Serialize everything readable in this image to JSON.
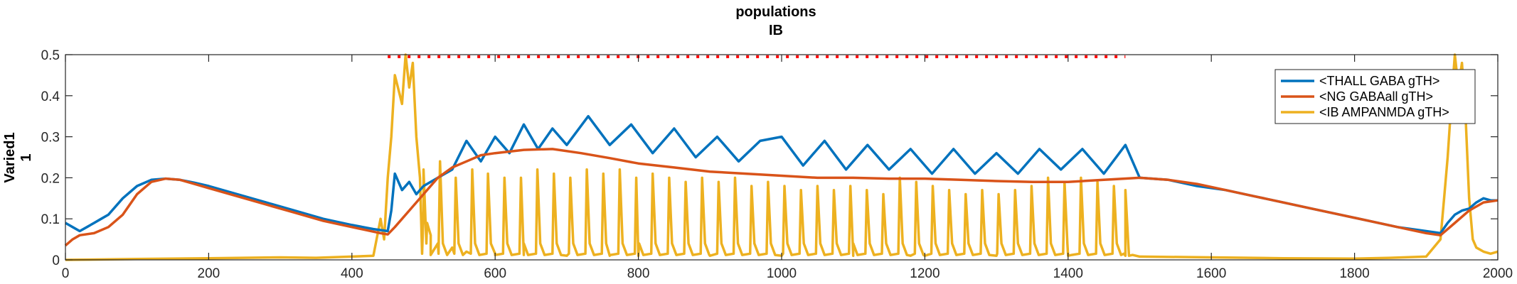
{
  "chart_data": {
    "type": "line",
    "title": [
      "populations",
      "IB"
    ],
    "ylabel": [
      "Varied1",
      "1"
    ],
    "xlim": [
      0,
      2000
    ],
    "ylim": [
      0,
      0.5
    ],
    "xticks": [
      0,
      200,
      400,
      600,
      800,
      1000,
      1200,
      1400,
      1600,
      1800,
      2000
    ],
    "yticks": [
      0,
      0.1,
      0.2,
      0.3,
      0.4,
      0.5
    ],
    "grid": false,
    "legend_position": "top-right",
    "stimulus_marker": {
      "y": 0.495,
      "x_start": 450,
      "x_end": 1480,
      "color": "#FF0000"
    },
    "series": [
      {
        "name": "<THALL GABA gTH>",
        "color": "#0072BD",
        "x": [
          0,
          5,
          10,
          20,
          30,
          40,
          50,
          60,
          80,
          100,
          120,
          140,
          160,
          180,
          200,
          240,
          280,
          320,
          360,
          400,
          430,
          450,
          455,
          460,
          470,
          480,
          490,
          500,
          520,
          540,
          560,
          580,
          600,
          620,
          640,
          660,
          680,
          700,
          730,
          760,
          790,
          820,
          850,
          880,
          910,
          940,
          970,
          1000,
          1030,
          1060,
          1090,
          1120,
          1150,
          1180,
          1210,
          1240,
          1270,
          1300,
          1330,
          1360,
          1390,
          1420,
          1450,
          1480,
          1500,
          1540,
          1580,
          1620,
          1660,
          1700,
          1740,
          1780,
          1820,
          1860,
          1900,
          1920,
          1930,
          1940,
          1950,
          1960,
          1970,
          1980,
          1990,
          2000
        ],
        "values": [
          0.09,
          0.085,
          0.08,
          0.07,
          0.08,
          0.09,
          0.1,
          0.11,
          0.15,
          0.18,
          0.195,
          0.198,
          0.195,
          0.188,
          0.18,
          0.16,
          0.14,
          0.12,
          0.1,
          0.085,
          0.075,
          0.07,
          0.12,
          0.21,
          0.17,
          0.19,
          0.16,
          0.18,
          0.2,
          0.22,
          0.29,
          0.24,
          0.3,
          0.26,
          0.33,
          0.27,
          0.32,
          0.28,
          0.35,
          0.28,
          0.33,
          0.26,
          0.32,
          0.25,
          0.3,
          0.24,
          0.29,
          0.3,
          0.23,
          0.29,
          0.22,
          0.28,
          0.22,
          0.27,
          0.21,
          0.27,
          0.21,
          0.26,
          0.21,
          0.27,
          0.22,
          0.27,
          0.21,
          0.28,
          0.2,
          0.195,
          0.18,
          0.17,
          0.155,
          0.14,
          0.125,
          0.11,
          0.095,
          0.08,
          0.07,
          0.065,
          0.09,
          0.11,
          0.12,
          0.125,
          0.14,
          0.15,
          0.145,
          0.145
        ]
      },
      {
        "name": "<NG GABAall gTH>",
        "color": "#D95319",
        "x": [
          0,
          10,
          20,
          40,
          60,
          80,
          100,
          120,
          140,
          160,
          180,
          200,
          240,
          280,
          320,
          360,
          400,
          440,
          450,
          460,
          480,
          500,
          520,
          540,
          560,
          580,
          600,
          640,
          680,
          720,
          760,
          800,
          850,
          900,
          950,
          1000,
          1050,
          1100,
          1150,
          1200,
          1250,
          1300,
          1350,
          1400,
          1450,
          1500,
          1540,
          1580,
          1620,
          1660,
          1700,
          1740,
          1780,
          1820,
          1860,
          1900,
          1920,
          1940,
          1960,
          1980,
          2000
        ],
        "values": [
          0.035,
          0.05,
          0.06,
          0.065,
          0.08,
          0.11,
          0.16,
          0.19,
          0.198,
          0.195,
          0.185,
          0.175,
          0.155,
          0.135,
          0.115,
          0.095,
          0.08,
          0.065,
          0.062,
          0.08,
          0.12,
          0.16,
          0.2,
          0.225,
          0.24,
          0.255,
          0.26,
          0.268,
          0.27,
          0.26,
          0.248,
          0.235,
          0.225,
          0.215,
          0.21,
          0.205,
          0.2,
          0.2,
          0.198,
          0.198,
          0.195,
          0.192,
          0.19,
          0.19,
          0.195,
          0.2,
          0.195,
          0.185,
          0.17,
          0.155,
          0.14,
          0.125,
          0.11,
          0.095,
          0.08,
          0.065,
          0.06,
          0.09,
          0.12,
          0.14,
          0.145
        ]
      },
      {
        "name": "<IB AMPANMDA gTH>",
        "color": "#EDB120",
        "x": [
          0,
          100,
          200,
          300,
          350,
          400,
          430,
          440,
          445,
          450,
          455,
          460,
          470,
          475,
          480,
          485,
          490,
          495,
          500,
          505,
          510,
          520,
          540,
          560,
          600,
          640,
          700,
          760,
          800,
          900,
          1000,
          1100,
          1180,
          1200,
          1300,
          1400,
          1480,
          1485,
          1500,
          1600,
          1700,
          1800,
          1850,
          1900,
          1920,
          1925,
          1930,
          1935,
          1940,
          1945,
          1950,
          1955,
          1960,
          1965,
          1970,
          1980,
          1990,
          2000
        ],
        "values": [
          0,
          0.002,
          0.004,
          0.006,
          0.005,
          0.008,
          0.01,
          0.1,
          0.05,
          0.2,
          0.3,
          0.45,
          0.38,
          0.5,
          0.42,
          0.48,
          0.3,
          0.2,
          0.12,
          0.09,
          0.06,
          0.04,
          0.03,
          0.02,
          0.015,
          0.012,
          0.01,
          0.01,
          0.01,
          0.01,
          0.01,
          0.01,
          0.01,
          0.01,
          0.01,
          0.01,
          0.01,
          0.01,
          0.008,
          0.006,
          0.004,
          0.003,
          0.005,
          0.008,
          0.05,
          0.15,
          0.25,
          0.38,
          0.5,
          0.42,
          0.48,
          0.35,
          0.15,
          0.05,
          0.03,
          0.02,
          0.015,
          0.02
        ]
      }
    ],
    "spikes": {
      "series": "<IB AMPANMDA gTH>",
      "x": [
        500,
        523,
        545,
        568,
        590,
        613,
        636,
        659,
        682,
        705,
        728,
        751,
        774,
        797,
        820,
        843,
        866,
        889,
        912,
        935,
        958,
        981,
        1004,
        1027,
        1050,
        1073,
        1096,
        1119,
        1142,
        1165,
        1188,
        1211,
        1234,
        1257,
        1280,
        1303,
        1326,
        1349,
        1372,
        1395,
        1418,
        1441,
        1464,
        1480
      ],
      "values": [
        0.22,
        0.24,
        0.2,
        0.22,
        0.21,
        0.2,
        0.2,
        0.22,
        0.21,
        0.2,
        0.22,
        0.21,
        0.22,
        0.2,
        0.21,
        0.2,
        0.19,
        0.2,
        0.19,
        0.2,
        0.18,
        0.19,
        0.18,
        0.17,
        0.18,
        0.17,
        0.18,
        0.17,
        0.16,
        0.2,
        0.19,
        0.18,
        0.17,
        0.16,
        0.17,
        0.16,
        0.17,
        0.18,
        0.2,
        0.19,
        0.2,
        0.19,
        0.18,
        0.17
      ]
    }
  }
}
